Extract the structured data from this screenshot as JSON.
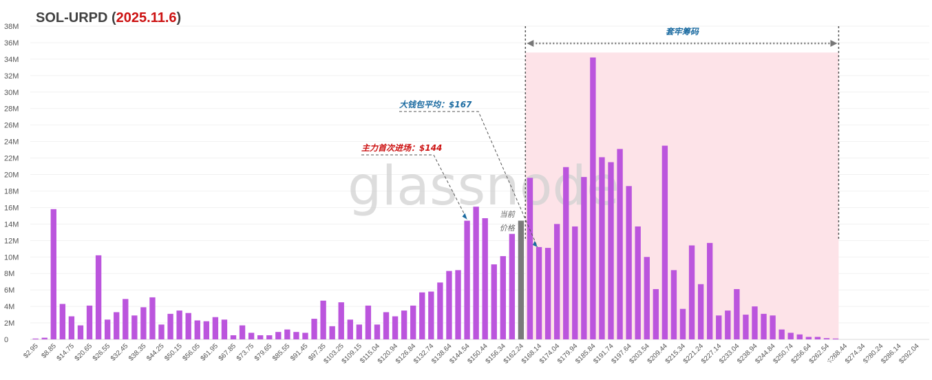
{
  "title": {
    "prefix": "SOL-URPD (",
    "date": "2025.11.6",
    "suffix": ")",
    "colors": {
      "main": "#404040",
      "date": "#cc1111"
    }
  },
  "watermark": "glassnode",
  "corner_watermark": "知乎 @小明",
  "chart_data": {
    "type": "bar",
    "ylabel": "",
    "xlabel": "",
    "ylim": [
      0,
      38
    ],
    "y_unit": "M",
    "y_ticks": [
      "0",
      "2M",
      "4M",
      "6M",
      "8M",
      "10M",
      "12M",
      "14M",
      "16M",
      "18M",
      "20M",
      "22M",
      "24M",
      "26M",
      "28M",
      "30M",
      "32M",
      "34M",
      "36M",
      "38M"
    ],
    "grid": true,
    "x_tick_labels": [
      "$2.95",
      "$8.85",
      "$14.75",
      "$20.65",
      "$26.55",
      "$32.45",
      "$38.35",
      "$44.25",
      "$50.15",
      "$56.05",
      "$61.95",
      "$67.85",
      "$73.75",
      "$79.65",
      "$85.55",
      "$91.45",
      "$97.35",
      "$103.25",
      "$109.15",
      "$115.04",
      "$120.94",
      "$126.84",
      "$132.74",
      "$138.64",
      "$144.54",
      "$150.44",
      "$156.34",
      "$162.24",
      "$168.14",
      "$174.04",
      "$179.94",
      "$185.84",
      "$191.74",
      "$197.64",
      "$203.54",
      "$209.44",
      "$215.34",
      "$221.24",
      "$227.14",
      "$233.04",
      "$238.94",
      "$244.84",
      "$250.74",
      "$256.64",
      "$262.54",
      "$268.44",
      "$274.34",
      "$280.24",
      "$286.14",
      "$292.04"
    ],
    "x_start": 2.95,
    "bin_width": 2.95,
    "values": [
      0.1,
      0.2,
      15.8,
      4.3,
      2.8,
      1.7,
      4.1,
      10.2,
      2.4,
      3.3,
      4.9,
      2.9,
      3.9,
      5.1,
      1.8,
      3.1,
      3.5,
      3.2,
      2.3,
      2.2,
      2.7,
      2.4,
      0.5,
      1.7,
      0.8,
      0.5,
      0.5,
      0.9,
      1.2,
      0.9,
      0.8,
      2.5,
      4.7,
      1.6,
      4.5,
      2.4,
      1.8,
      4.1,
      1.8,
      3.3,
      2.8,
      3.5,
      4.1,
      5.7,
      5.8,
      6.9,
      8.3,
      8.4,
      14.4,
      16.1,
      14.7,
      9.1,
      10.1,
      12.8,
      14.4,
      19.6,
      11.2,
      11.1,
      14.0,
      20.9,
      13.7,
      19.7,
      34.2,
      22.1,
      21.5,
      23.1,
      18.6,
      13.7,
      10.0,
      6.1,
      23.5,
      8.4,
      3.7,
      11.4,
      6.7,
      11.7,
      2.9,
      3.5,
      6.1,
      3.0,
      4.0,
      3.1,
      2.9,
      1.2,
      0.8,
      0.6,
      0.3,
      0.3,
      0.15,
      0.1,
      0,
      0,
      0,
      0,
      0,
      0,
      0,
      0,
      0,
      0
    ],
    "current_price_bin": 54,
    "colors": {
      "bar": "#bb55dd",
      "current_bar": "#7a7a7a",
      "trapped_zone": "#fde3e8",
      "annotation_red": "#cc1111",
      "annotation_blue": "#1a6aa0",
      "arrow": "#555555"
    },
    "annotations": {
      "trapped_zone": {
        "label": "套牢筹码",
        "from_bin": 55,
        "to_bin": 89,
        "top": 34.8
      },
      "whale_avg": {
        "label": "大钱包平均：$167",
        "target_bin": 56,
        "target_value": 11.2
      },
      "main_entry": {
        "label": "主力首次进场：$144",
        "target_bin": 48,
        "target_value": 14.4
      },
      "current_price": {
        "line1": "当前",
        "line2": "价格"
      }
    }
  }
}
